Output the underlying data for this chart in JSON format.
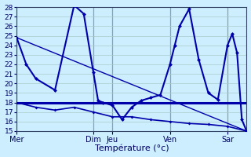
{
  "xlabel": "Température (°c)",
  "bg_color": "#cceeff",
  "grid_color": "#aacccc",
  "line_color": "#0000aa",
  "ylim": [
    15,
    28
  ],
  "xlim": [
    0,
    48
  ],
  "yticks": [
    15,
    16,
    17,
    18,
    19,
    20,
    21,
    22,
    23,
    24,
    25,
    26,
    27,
    28
  ],
  "day_labels": [
    "Mer",
    "Dim",
    "Jeu",
    "Ven",
    "Sar"
  ],
  "day_positions": [
    0,
    16,
    20,
    32,
    44
  ],
  "series_main": {
    "x": [
      0,
      2,
      4,
      8,
      12,
      14,
      16,
      17,
      18,
      20,
      22,
      24,
      26,
      28,
      30,
      32,
      33,
      34,
      36,
      38,
      40,
      42,
      44,
      45,
      46,
      47,
      48
    ],
    "y": [
      24.8,
      22.0,
      20.5,
      19.3,
      28.2,
      27.3,
      21.2,
      18.2,
      18.0,
      17.7,
      16.2,
      17.5,
      18.2,
      18.5,
      18.8,
      22.0,
      24.0,
      26.0,
      27.8,
      22.5,
      19.0,
      18.3,
      24.0,
      25.2,
      23.2,
      16.2,
      15.0
    ]
  },
  "series_trend": {
    "x": [
      0,
      48
    ],
    "y": [
      24.8,
      15.0
    ]
  },
  "series_lower": {
    "x": [
      0,
      4,
      8,
      12,
      16,
      20,
      24,
      28,
      32,
      36,
      40,
      44,
      48
    ],
    "y": [
      18.0,
      17.5,
      17.2,
      17.5,
      17.0,
      16.5,
      16.5,
      16.2,
      16.0,
      15.8,
      15.7,
      15.5,
      15.0
    ]
  },
  "hline_y": 18.0
}
